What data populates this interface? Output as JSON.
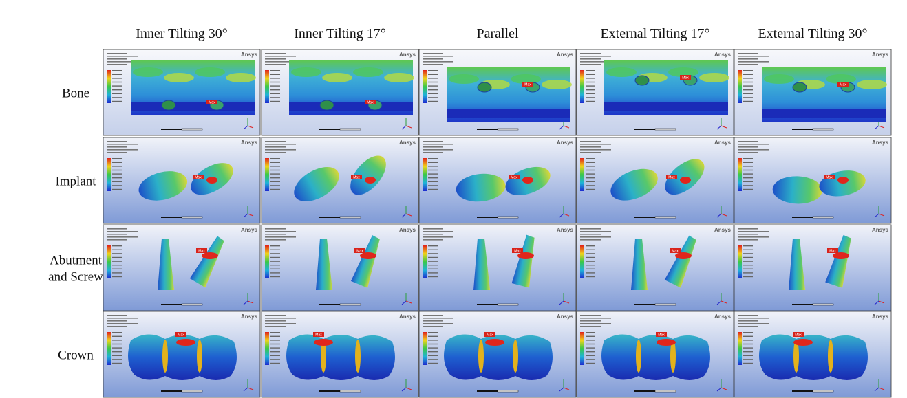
{
  "columns": [
    "Inner Tilting 30°",
    "Inner Tilting 17°",
    "Parallel",
    "External Tilting 17°",
    "External Tilting 30°"
  ],
  "rows": [
    "Bone",
    "Implant",
    "Abutment\nand Screw",
    "Crown"
  ],
  "panel_brand": "Ansys",
  "max_tag": "Max"
}
